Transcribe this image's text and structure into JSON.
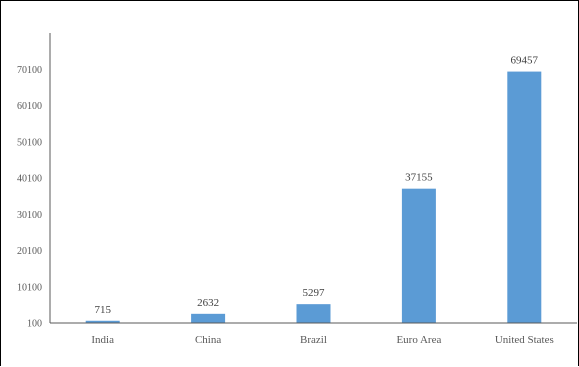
{
  "chart_data": {
    "type": "bar",
    "title": "",
    "xlabel": "",
    "ylabel": "",
    "categories": [
      "India",
      "China",
      "Brazil",
      "Euro Area",
      "United States"
    ],
    "values": [
      715,
      2632,
      5297,
      37155,
      69457
    ],
    "data_labels": [
      "715",
      "2632",
      "5297",
      "37155",
      "69457"
    ],
    "yticks": [
      100,
      10100,
      20100,
      30100,
      40100,
      50100,
      60100,
      70100
    ],
    "ytick_labels": [
      "100",
      "10100",
      "20100",
      "30100",
      "40100",
      "50100",
      "60100",
      "70100"
    ],
    "ylim": [
      100,
      80100
    ],
    "grid": false,
    "legend": "none",
    "bar_color": "#5B9BD5"
  }
}
